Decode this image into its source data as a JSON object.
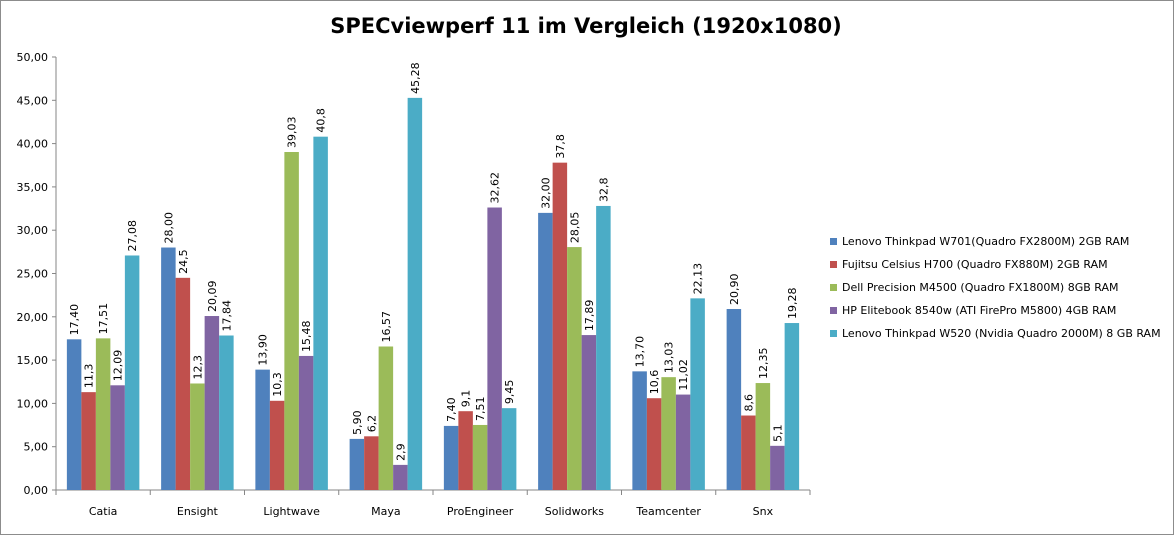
{
  "chart_data": {
    "type": "bar",
    "title": "SPECviewperf 11 im Vergleich (1920x1080)",
    "xlabel": "",
    "ylabel": "",
    "ylim": [
      0,
      50
    ],
    "yticks": [
      "0,00",
      "5,00",
      "10,00",
      "15,00",
      "20,00",
      "25,00",
      "30,00",
      "35,00",
      "40,00",
      "45,00",
      "50,00"
    ],
    "categories": [
      "Catia",
      "Ensight",
      "Lightwave",
      "Maya",
      "ProEngineer",
      "Solidworks",
      "Teamcenter",
      "Snx"
    ],
    "legend_position": "right",
    "grid": false,
    "series": [
      {
        "name": "Lenovo Thinkpad W701(Quadro FX2800M) 2GB RAM",
        "color": "#4f81bd",
        "values": [
          17.4,
          28.0,
          13.9,
          5.9,
          7.4,
          32.0,
          13.7,
          20.9
        ],
        "labels": [
          "17,40",
          "28,00",
          "13,90",
          "5,90",
          "7,40",
          "32,00",
          "13,70",
          "20,90"
        ]
      },
      {
        "name": "Fujitsu Celsius H700 (Quadro FX880M) 2GB RAM",
        "color": "#c0504d",
        "values": [
          11.3,
          24.5,
          10.3,
          6.2,
          9.1,
          37.8,
          10.6,
          8.6
        ],
        "labels": [
          "11,3",
          "24,5",
          "10,3",
          "6,2",
          "9,1",
          "37,8",
          "10,6",
          "8,6"
        ]
      },
      {
        "name": "Dell Precision M4500 (Quadro FX1800M) 8GB RAM",
        "color": "#9bbb59",
        "values": [
          17.51,
          12.3,
          39.03,
          16.57,
          7.51,
          28.05,
          13.03,
          12.35
        ],
        "labels": [
          "17,51",
          "12,3",
          "39,03",
          "16,57",
          "7,51",
          "28,05",
          "13,03",
          "12,35"
        ]
      },
      {
        "name": "HP Elitebook 8540w (ATI FirePro M5800) 4GB RAM",
        "color": "#8064a2",
        "values": [
          12.09,
          20.09,
          15.48,
          2.9,
          32.62,
          17.89,
          11.02,
          5.1
        ],
        "labels": [
          "12,09",
          "20,09",
          "15,48",
          "2,9",
          "32,62",
          "17,89",
          "11,02",
          "5,1"
        ]
      },
      {
        "name": "Lenovo Thinkpad W520 (Nvidia Quadro 2000M) 8 GB RAM",
        "color": "#4bacc6",
        "values": [
          27.08,
          17.84,
          40.8,
          45.28,
          9.45,
          32.8,
          22.13,
          19.28
        ],
        "labels": [
          "27,08",
          "17,84",
          "40,8",
          "45,28",
          "9,45",
          "32,8",
          "22,13",
          "19,28"
        ]
      }
    ]
  }
}
